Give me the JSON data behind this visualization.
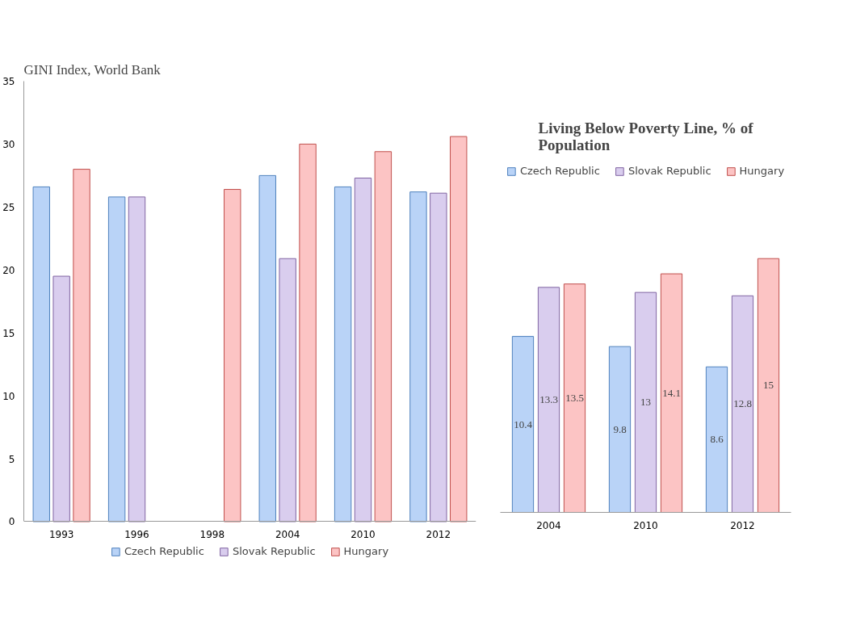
{
  "chart_data": [
    {
      "type": "bar",
      "title": "GINI Index, World Bank",
      "categories": [
        "1993",
        "1996",
        "1998",
        "2004",
        "2010",
        "2012"
      ],
      "series": [
        {
          "name": "Czech Republic",
          "color": "#b9d3f7",
          "values": [
            26.6,
            25.8,
            null,
            27.5,
            26.6,
            26.2
          ]
        },
        {
          "name": "Slovak Republic",
          "color": "#d9cdee",
          "values": [
            19.5,
            25.8,
            null,
            20.9,
            27.3,
            26.1
          ]
        },
        {
          "name": "Hungary",
          "color": "#fcc4c4",
          "values": [
            28.0,
            null,
            26.4,
            30.0,
            29.4,
            30.6
          ]
        }
      ],
      "ylim": [
        0,
        35
      ],
      "yticks": [
        0,
        5,
        10,
        15,
        20,
        25,
        30,
        35
      ],
      "grid": false,
      "legend": "bottom"
    },
    {
      "type": "bar",
      "title": "Living Below Poverty Line, % of Population",
      "categories": [
        "2004",
        "2010",
        "2012"
      ],
      "series": [
        {
          "name": "Czech Republic",
          "color": "#b9d3f7",
          "values": [
            10.4,
            9.8,
            8.6
          ]
        },
        {
          "name": "Slovak Republic",
          "color": "#d9cdee",
          "values": [
            13.3,
            13,
            12.8
          ]
        },
        {
          "name": "Hungary",
          "color": "#fcc4c4",
          "values": [
            13.5,
            14.1,
            15
          ]
        }
      ],
      "data_labels": true,
      "grid": false,
      "legend": "top"
    }
  ]
}
